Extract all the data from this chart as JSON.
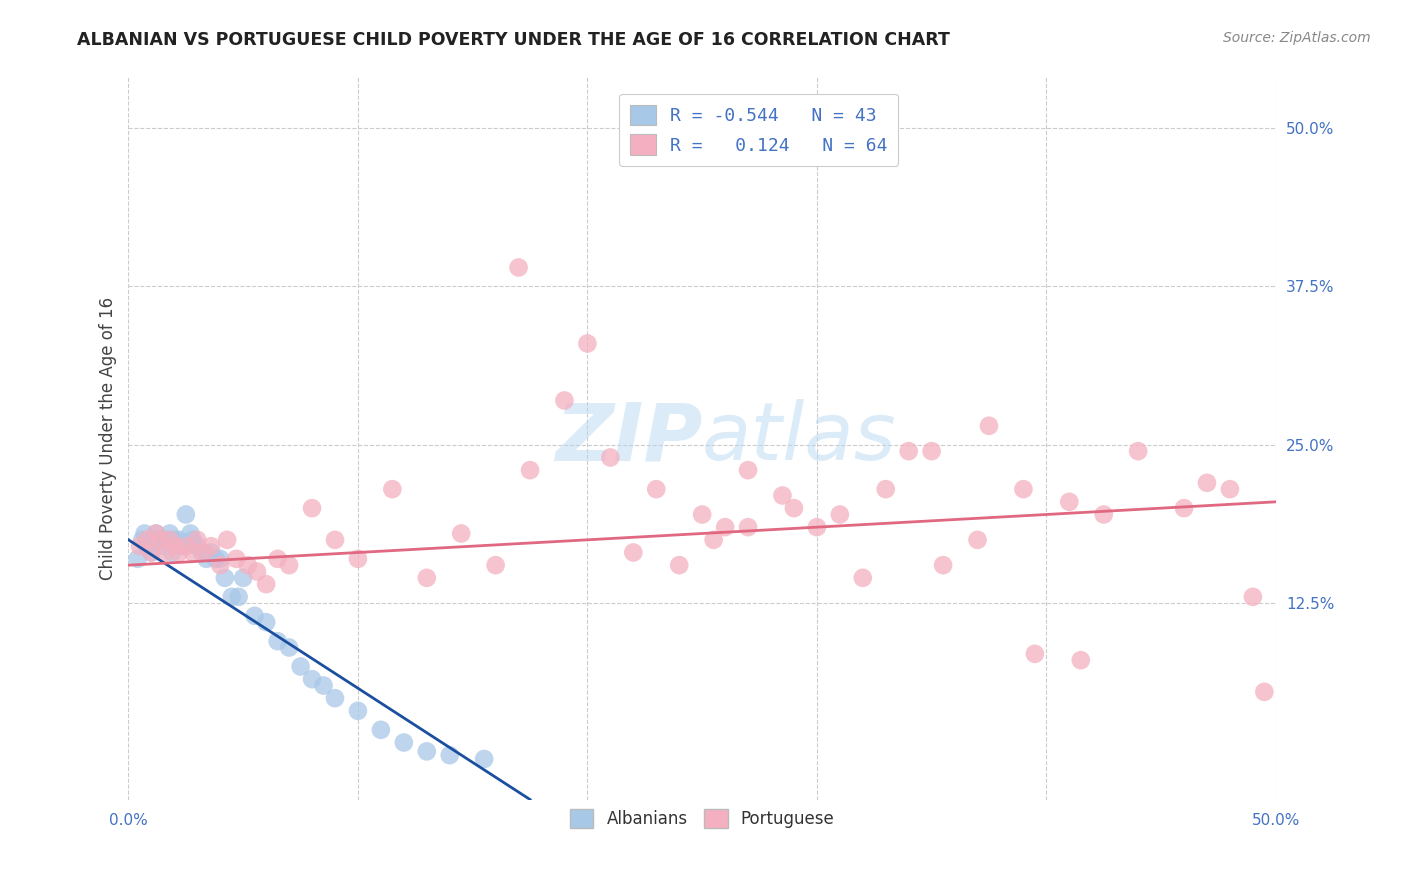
{
  "title": "ALBANIAN VS PORTUGUESE CHILD POVERTY UNDER THE AGE OF 16 CORRELATION CHART",
  "source": "Source: ZipAtlas.com",
  "ylabel": "Child Poverty Under the Age of 16",
  "xlim": [
    0.0,
    0.5
  ],
  "ylim": [
    -0.03,
    0.54
  ],
  "ytick_labels_right": [
    "50.0%",
    "37.5%",
    "25.0%",
    "12.5%"
  ],
  "ytick_vals_right": [
    0.5,
    0.375,
    0.25,
    0.125
  ],
  "albanian_color": "#a8c8e8",
  "portuguese_color": "#f4b0c0",
  "albanian_line_color": "#1a4fa0",
  "portuguese_line_color": "#e06880",
  "background_color": "#ffffff",
  "grid_color": "#cccccc",
  "albanian_x": [
    0.004,
    0.006,
    0.007,
    0.008,
    0.009,
    0.01,
    0.011,
    0.012,
    0.013,
    0.015,
    0.016,
    0.018,
    0.019,
    0.02,
    0.022,
    0.024,
    0.025,
    0.027,
    0.028,
    0.03,
    0.032,
    0.034,
    0.036,
    0.038,
    0.04,
    0.042,
    0.045,
    0.048,
    0.05,
    0.055,
    0.06,
    0.065,
    0.07,
    0.075,
    0.08,
    0.085,
    0.09,
    0.1,
    0.11,
    0.12,
    0.13,
    0.14,
    0.155
  ],
  "albanian_y": [
    0.16,
    0.175,
    0.18,
    0.17,
    0.175,
    0.165,
    0.175,
    0.18,
    0.17,
    0.175,
    0.175,
    0.18,
    0.165,
    0.175,
    0.175,
    0.17,
    0.195,
    0.18,
    0.175,
    0.17,
    0.165,
    0.16,
    0.165,
    0.16,
    0.16,
    0.145,
    0.13,
    0.13,
    0.145,
    0.115,
    0.11,
    0.095,
    0.09,
    0.075,
    0.065,
    0.06,
    0.05,
    0.04,
    0.025,
    0.015,
    0.008,
    0.005,
    0.002
  ],
  "portuguese_x": [
    0.005,
    0.008,
    0.01,
    0.012,
    0.014,
    0.016,
    0.018,
    0.02,
    0.022,
    0.025,
    0.028,
    0.03,
    0.033,
    0.036,
    0.04,
    0.043,
    0.047,
    0.052,
    0.056,
    0.06,
    0.065,
    0.07,
    0.08,
    0.09,
    0.1,
    0.115,
    0.13,
    0.145,
    0.16,
    0.175,
    0.19,
    0.21,
    0.23,
    0.25,
    0.26,
    0.27,
    0.29,
    0.31,
    0.33,
    0.35,
    0.37,
    0.39,
    0.41,
    0.425,
    0.44,
    0.46,
    0.47,
    0.48,
    0.49,
    0.495,
    0.17,
    0.2,
    0.22,
    0.24,
    0.255,
    0.27,
    0.285,
    0.3,
    0.32,
    0.34,
    0.355,
    0.375,
    0.395,
    0.415
  ],
  "portuguese_y": [
    0.17,
    0.175,
    0.165,
    0.18,
    0.175,
    0.165,
    0.175,
    0.17,
    0.165,
    0.17,
    0.165,
    0.175,
    0.165,
    0.17,
    0.155,
    0.175,
    0.16,
    0.155,
    0.15,
    0.14,
    0.16,
    0.155,
    0.2,
    0.175,
    0.16,
    0.215,
    0.145,
    0.18,
    0.155,
    0.23,
    0.285,
    0.24,
    0.215,
    0.195,
    0.185,
    0.23,
    0.2,
    0.195,
    0.215,
    0.245,
    0.175,
    0.215,
    0.205,
    0.195,
    0.245,
    0.2,
    0.22,
    0.215,
    0.13,
    0.055,
    0.39,
    0.33,
    0.165,
    0.155,
    0.175,
    0.185,
    0.21,
    0.185,
    0.145,
    0.245,
    0.155,
    0.265,
    0.085,
    0.08
  ],
  "alb_line_x0": 0.0,
  "alb_line_y0": 0.175,
  "alb_line_x1": 0.175,
  "alb_line_y1": -0.03,
  "por_line_x0": 0.0,
  "por_line_y0": 0.155,
  "por_line_x1": 0.5,
  "por_line_y1": 0.205
}
